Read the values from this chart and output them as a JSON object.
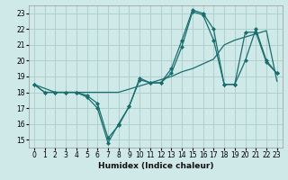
{
  "xlabel": "Humidex (Indice chaleur)",
  "bg_color": "#cfe8e8",
  "grid_color": "#b0d0d0",
  "line_color": "#1a6e6e",
  "xlim": [
    -0.5,
    23.5
  ],
  "ylim": [
    14.5,
    23.5
  ],
  "xticks": [
    0,
    1,
    2,
    3,
    4,
    5,
    6,
    7,
    8,
    9,
    10,
    11,
    12,
    13,
    14,
    15,
    16,
    17,
    18,
    19,
    20,
    21,
    22,
    23
  ],
  "yticks": [
    15,
    16,
    17,
    18,
    19,
    20,
    21,
    22,
    23
  ],
  "line1_x": [
    0,
    1,
    2,
    3,
    4,
    5,
    6,
    7,
    8,
    9,
    10,
    11,
    12,
    13,
    14,
    15,
    16,
    17,
    18,
    19,
    20,
    21,
    22,
    23
  ],
  "line1_y": [
    18.5,
    18.0,
    18.0,
    18.0,
    18.0,
    17.8,
    17.3,
    15.1,
    15.9,
    17.1,
    18.9,
    18.6,
    18.6,
    19.2,
    20.9,
    23.1,
    22.9,
    21.3,
    18.5,
    18.5,
    21.8,
    21.8,
    19.9,
    19.2
  ],
  "line2_x": [
    0,
    2,
    3,
    4,
    5,
    6,
    7,
    8,
    9,
    10,
    11,
    12,
    13,
    14,
    15,
    16,
    17,
    18,
    19,
    20,
    21,
    22,
    23
  ],
  "line2_y": [
    18.5,
    18.0,
    18.0,
    18.0,
    18.0,
    18.0,
    18.0,
    18.0,
    18.2,
    18.4,
    18.6,
    18.8,
    19.0,
    19.3,
    19.5,
    19.8,
    20.1,
    21.0,
    21.3,
    21.5,
    21.7,
    21.9,
    18.7
  ],
  "line3_x": [
    0,
    1,
    2,
    3,
    4,
    5,
    6,
    7,
    8,
    9,
    10,
    11,
    12,
    13,
    14,
    15,
    16,
    17,
    18,
    19,
    20,
    21,
    22,
    23
  ],
  "line3_y": [
    18.5,
    18.0,
    18.0,
    18.0,
    18.0,
    17.7,
    17.0,
    14.8,
    16.0,
    17.1,
    18.8,
    18.6,
    18.6,
    19.5,
    21.3,
    23.2,
    23.0,
    22.0,
    18.5,
    18.5,
    20.0,
    22.0,
    20.0,
    19.2
  ]
}
